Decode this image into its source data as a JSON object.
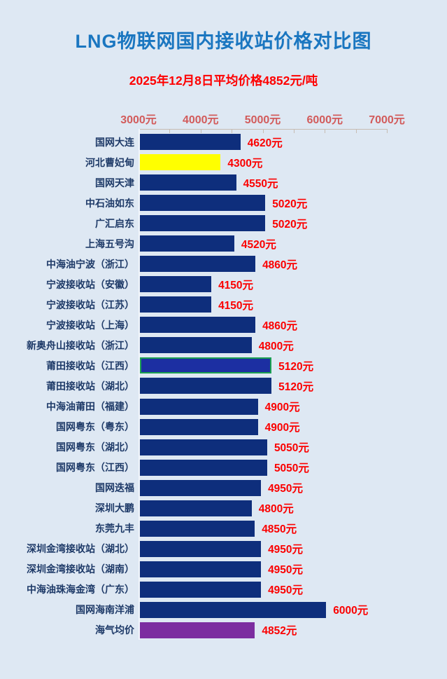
{
  "header": {
    "title": "LNG物联网国内接收站价格对比图",
    "subtitle": "2025年12月8日平均价格4852元/吨"
  },
  "theme": {
    "background": "#dee8f3",
    "title_color": "#1a76c0",
    "subtitle_color": "#fe0000",
    "category_label_color": "#1e3a68",
    "value_label_color": "#fb0000",
    "axis_label_color": "#d25b5b",
    "axis_line_color": "#c6bcb2",
    "y_axis_line_color": "#f2f6fb",
    "default_bar_color": "#0e2e7c"
  },
  "chart_data": {
    "type": "bar",
    "orientation": "horizontal",
    "title": "LNG物联网国内接收站价格对比图",
    "subtitle": "2025年12月8日平均价格4852元/吨",
    "xlabel": "",
    "ylabel": "",
    "unit": "元/吨",
    "xlim": [
      3000,
      7000
    ],
    "x_ticks": [
      3000,
      4000,
      5000,
      6000,
      7000
    ],
    "x_tick_labels": [
      "3000元",
      "4000元",
      "5000元",
      "6000元",
      "7000元"
    ],
    "minor_tick_step": 500,
    "grid": false,
    "legend": false,
    "bars": [
      {
        "category": "国网大连",
        "value": 4620,
        "label": "4620元"
      },
      {
        "category": "河北曹妃甸",
        "value": 4300,
        "label": "4300元",
        "color": "#ffff00"
      },
      {
        "category": "国网天津",
        "value": 4550,
        "label": "4550元"
      },
      {
        "category": "中石油如东",
        "value": 5020,
        "label": "5020元"
      },
      {
        "category": "广汇启东",
        "value": 5020,
        "label": "5020元"
      },
      {
        "category": "上海五号沟",
        "value": 4520,
        "label": "4520元"
      },
      {
        "category": "中海油宁波（浙江）",
        "value": 4860,
        "label": "4860元"
      },
      {
        "category": "宁波接收站（安徽）",
        "value": 4150,
        "label": "4150元"
      },
      {
        "category": "宁波接收站（江苏）",
        "value": 4150,
        "label": "4150元"
      },
      {
        "category": "宁波接收站（上海）",
        "value": 4860,
        "label": "4860元"
      },
      {
        "category": "新奥舟山接收站（浙江）",
        "value": 4800,
        "label": "4800元"
      },
      {
        "category": "莆田接收站（江西）",
        "value": 5120,
        "label": "5120元",
        "color": "#1c2fa2",
        "border_color": "#1ba052"
      },
      {
        "category": "莆田接收站（湖北）",
        "value": 5120,
        "label": "5120元"
      },
      {
        "category": "中海油莆田（福建）",
        "value": 4900,
        "label": "4900元"
      },
      {
        "category": "国网粤东（粤东）",
        "value": 4900,
        "label": "4900元"
      },
      {
        "category": "国网粤东（湖北）",
        "value": 5050,
        "label": "5050元"
      },
      {
        "category": "国网粤东（江西）",
        "value": 5050,
        "label": "5050元"
      },
      {
        "category": "国网迭福",
        "value": 4950,
        "label": "4950元"
      },
      {
        "category": "深圳大鹏",
        "value": 4800,
        "label": "4800元"
      },
      {
        "category": "东莞九丰",
        "value": 4850,
        "label": "4850元"
      },
      {
        "category": "深圳金湾接收站（湖北）",
        "value": 4950,
        "label": "4950元"
      },
      {
        "category": "深圳金湾接收站（湖南）",
        "value": 4950,
        "label": "4950元"
      },
      {
        "category": "中海油珠海金湾（广东）",
        "value": 4950,
        "label": "4950元"
      },
      {
        "category": "国网海南洋浦",
        "value": 6000,
        "label": "6000元"
      },
      {
        "category": "海气均价",
        "value": 4852,
        "label": "4852元",
        "color": "#7c2da0"
      }
    ]
  }
}
